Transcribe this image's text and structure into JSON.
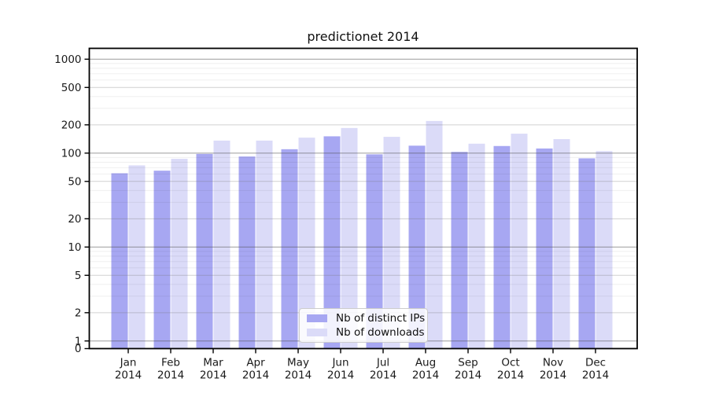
{
  "page": {
    "background": "#ffffff"
  },
  "chart_data": {
    "type": "bar",
    "title": "predictionet 2014",
    "categories": [
      "Jan",
      "Feb",
      "Mar",
      "Apr",
      "May",
      "Jun",
      "Jul",
      "Aug",
      "Sep",
      "Oct",
      "Nov",
      "Dec"
    ],
    "year": "2014",
    "series": [
      {
        "name": "Nb of distinct IPs",
        "color": "#a7a7f2",
        "values": [
          61,
          65,
          98,
          92,
          110,
          151,
          97,
          120,
          103,
          119,
          112,
          88
        ]
      },
      {
        "name": "Nb of downloads",
        "color": "#dbdbf8",
        "values": [
          74,
          87,
          136,
          136,
          146,
          185,
          149,
          220,
          126,
          161,
          141,
          105
        ]
      }
    ],
    "yticks": [
      1000,
      500,
      200,
      100,
      50,
      20,
      10,
      5,
      2,
      1,
      0
    ],
    "scale": "log",
    "ylim": [
      0,
      1000
    ],
    "grid": "on",
    "legend_position": "lower center",
    "axis_color": "#000000",
    "tick_label_color": "#1a1a1a"
  }
}
